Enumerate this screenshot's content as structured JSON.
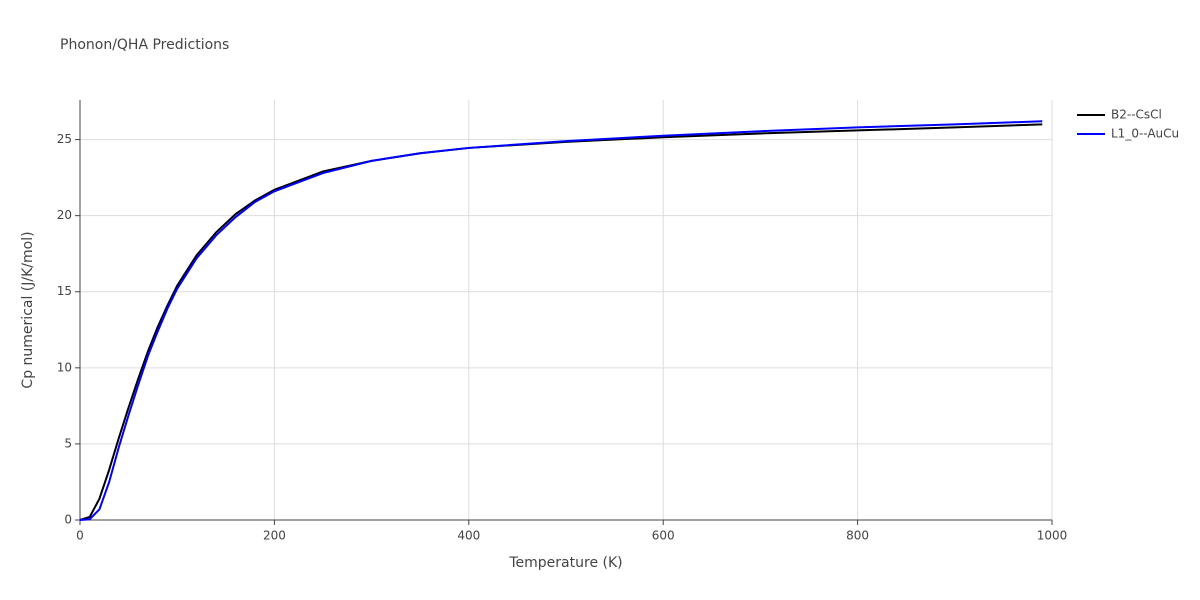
{
  "chart_data": {
    "type": "line",
    "title": "Phonon/QHA Predictions",
    "x_label": "Temperature (K)",
    "y_label": "Cp numerical (J/K/mol)",
    "x": [
      0,
      10,
      20,
      30,
      40,
      50,
      60,
      70,
      80,
      90,
      100,
      120,
      140,
      160,
      180,
      200,
      250,
      300,
      350,
      400,
      500,
      600,
      700,
      800,
      900,
      990
    ],
    "series": [
      {
        "name": "B2--CsCl",
        "color": "#000000",
        "values": [
          0,
          0.2,
          1.4,
          3.3,
          5.4,
          7.4,
          9.3,
          11.1,
          12.7,
          14.1,
          15.4,
          17.4,
          18.9,
          20.1,
          21.0,
          21.7,
          22.9,
          23.6,
          24.1,
          24.45,
          24.85,
          25.15,
          25.4,
          25.6,
          25.8,
          26.0
        ]
      },
      {
        "name": "L1_0--AuCu",
        "color": "#0000ff",
        "values": [
          0,
          0.05,
          0.7,
          2.5,
          4.8,
          6.9,
          8.9,
          10.8,
          12.4,
          13.9,
          15.2,
          17.2,
          18.7,
          19.9,
          20.9,
          21.6,
          22.8,
          23.6,
          24.1,
          24.45,
          24.9,
          25.25,
          25.55,
          25.8,
          26.0,
          26.2
        ]
      }
    ],
    "xlim": [
      0,
      1000
    ],
    "xticks": [
      0,
      200,
      400,
      600,
      800,
      1000
    ],
    "ylim": [
      0,
      27.6
    ],
    "yticks": [
      0,
      5,
      10,
      15,
      20,
      25
    ],
    "grid": true,
    "legend": "right"
  }
}
